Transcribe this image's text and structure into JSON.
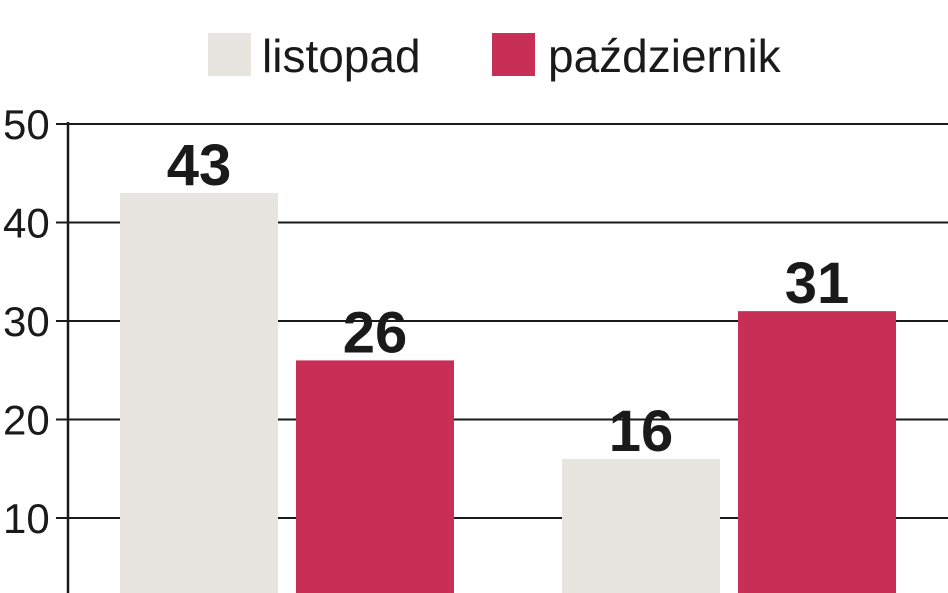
{
  "chart_data": {
    "type": "bar",
    "categories": [
      "",
      ""
    ],
    "series": [
      {
        "name": "listopad",
        "values": [
          43,
          16
        ],
        "color": "#e6e5df"
      },
      {
        "name": "październik",
        "values": [
          26,
          31
        ],
        "color": "#c72f57"
      }
    ],
    "yticks": [
      10,
      20,
      30,
      40,
      50
    ],
    "ylim": [
      0,
      50
    ],
    "grid": true,
    "legend": "top-center",
    "data_labels": true
  }
}
